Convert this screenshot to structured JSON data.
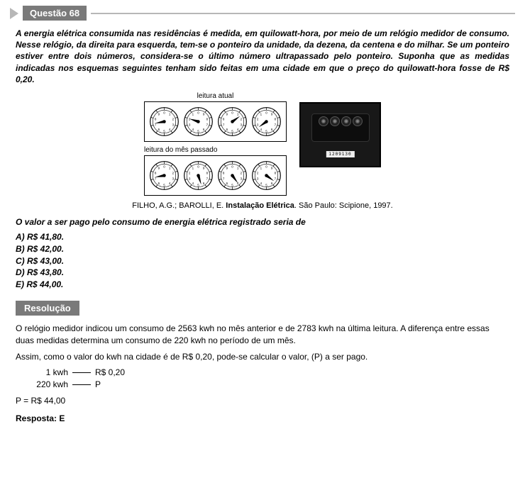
{
  "header": {
    "label": "Questão 68"
  },
  "statement": "A energia elétrica consumida nas residências é medida, em quilowatt-hora, por meio de um relógio medidor de consumo. Nesse relógio, da direita para esquerda, tem-se o ponteiro da unidade, da dezena, da centena e do milhar. Se um ponteiro estiver entre dois números, considera-se o último número ultrapassado pelo ponteiro. Suponha que as medidas indicadas nos esquemas seguintes tenham sido feitas em uma cidade em que o preço do quilowatt-hora fosse de R$ 0,20.",
  "diagram": {
    "caption_current": "leitura atual",
    "caption_previous": "leitura do mês passado",
    "dial_digits": [
      "0",
      "1",
      "2",
      "3",
      "4",
      "5",
      "6",
      "7",
      "8",
      "9"
    ],
    "dial_font_size": 5,
    "dial_stroke": "#000",
    "dial_fill": "#ffffff",
    "current_reading_angles": [
      260,
      288,
      54,
      234
    ],
    "previous_reading_angles": [
      260,
      162,
      144,
      126
    ],
    "dial_ccw": [
      false,
      true,
      false,
      true
    ],
    "photo_label": "1209130"
  },
  "source": {
    "pre": "FILHO, A.G.; BAROLLI, E. ",
    "title": "Instalação Elétrica",
    "post": ". São Paulo: Scipione, 1997."
  },
  "prompt": "O valor a ser pago pelo consumo de energia elétrica registrado seria de",
  "options": {
    "a": "A) R$ 41,80.",
    "b": "B) R$ 42,00.",
    "c": "C) R$ 43,00.",
    "d": "D) R$ 43,80.",
    "e": "E) R$ 44,00."
  },
  "resolution_label": "Resolução",
  "solution": {
    "p1": "O relógio medidor indicou um consumo de 2563 kwh no mês anterior e de 2783 kwh na última leitura. A diferença entre essas duas medidas determina um consumo de 220 kwh no período de um mês.",
    "p2": "Assim, como o valor do kwh na cidade é de R$ 0,20, pode-se calcular o valor, (P) a ser pago.",
    "calc_r1_l": "1 kwh",
    "calc_r1_r": "R$ 0,20",
    "calc_r2_l": "220 kwh",
    "calc_r2_r": "P",
    "eq": "P = R$ 44,00",
    "answer": "Resposta: E"
  }
}
